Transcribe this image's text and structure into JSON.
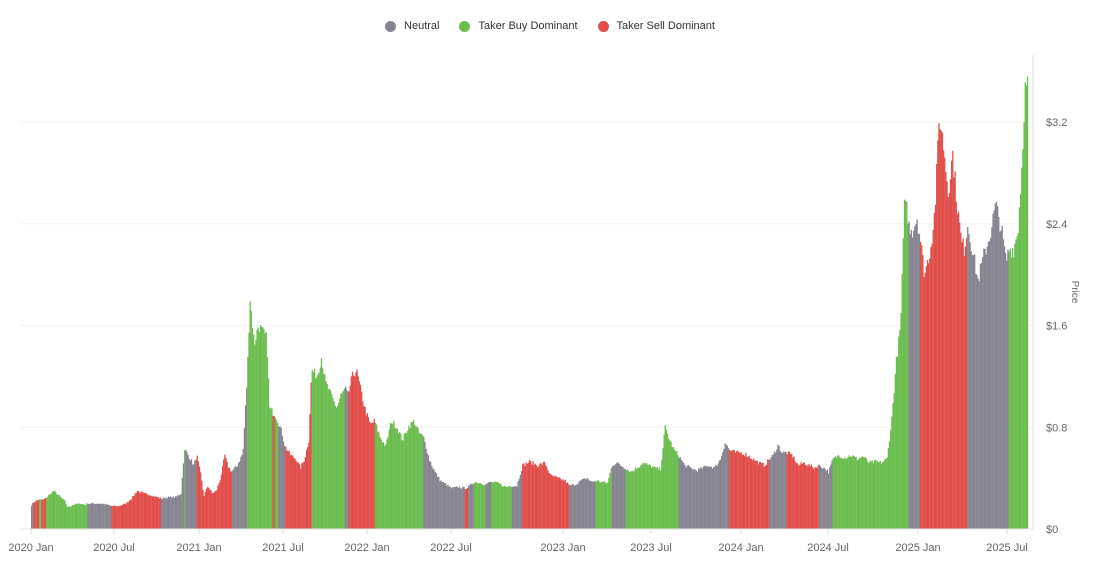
{
  "legend": [
    {
      "label": "Neutral",
      "color": "#868490",
      "key": "neutral"
    },
    {
      "label": "Taker Buy Dominant",
      "color": "#6cbd4f",
      "key": "buy"
    },
    {
      "label": "Taker Sell Dominant",
      "color": "#e24f4b",
      "key": "sell"
    }
  ],
  "chart_data": {
    "type": "bar",
    "title": "",
    "xlabel": "",
    "ylabel": "Price",
    "ylim": [
      0,
      3.6
    ],
    "y_ticks": [
      {
        "value": 0,
        "label": "$0"
      },
      {
        "value": 0.8,
        "label": "$0.8"
      },
      {
        "value": 1.6,
        "label": "$1.6"
      },
      {
        "value": 2.4,
        "label": "$2.4"
      },
      {
        "value": 3.2,
        "label": "$3.2"
      }
    ],
    "x_ticks": [
      {
        "label": "2020 Jan",
        "t": 0
      },
      {
        "label": "2020 Jul",
        "t": 6
      },
      {
        "label": "2021 Jan",
        "t": 12
      },
      {
        "label": "2021 Jul",
        "t": 18
      },
      {
        "label": "2022 Jan",
        "t": 24
      },
      {
        "label": "2022 Jul",
        "t": 30
      },
      {
        "label": "2023 Jan",
        "t": 36
      },
      {
        "label": "2023 Jul",
        "t": 42
      },
      {
        "label": "2024 Jan",
        "t": 48
      },
      {
        "label": "2024 Jul",
        "t": 54
      },
      {
        "label": "2025 Jan",
        "t": 60
      },
      {
        "label": "2025 Jul",
        "t": 66
      }
    ],
    "x_range_months": [
      0,
      66.7
    ],
    "grid": true,
    "legend_position": "top",
    "y_axis_position": "right",
    "series_note": "points: [month_offset_from_2020_Jan, price_usd, regime]",
    "points": [
      [
        0.0,
        0.19,
        "neutral"
      ],
      [
        0.15,
        0.21,
        "sell"
      ],
      [
        0.3,
        0.22,
        "sell"
      ],
      [
        0.5,
        0.23,
        "buy"
      ],
      [
        0.7,
        0.23,
        "sell"
      ],
      [
        0.85,
        0.23,
        "sell"
      ],
      [
        1.0,
        0.24,
        "buy"
      ],
      [
        1.3,
        0.27,
        "buy"
      ],
      [
        1.6,
        0.3,
        "buy"
      ],
      [
        1.8,
        0.28,
        "buy"
      ],
      [
        2.1,
        0.25,
        "buy"
      ],
      [
        2.4,
        0.22,
        "buy"
      ],
      [
        2.6,
        0.17,
        "buy"
      ],
      [
        3.0,
        0.19,
        "buy"
      ],
      [
        3.5,
        0.2,
        "buy"
      ],
      [
        3.9,
        0.19,
        "buy"
      ],
      [
        4.0,
        0.2,
        "neutral"
      ],
      [
        4.5,
        0.2,
        "neutral"
      ],
      [
        5.0,
        0.2,
        "neutral"
      ],
      [
        5.5,
        0.19,
        "neutral"
      ],
      [
        5.8,
        0.18,
        "sell"
      ],
      [
        6.3,
        0.18,
        "sell"
      ],
      [
        6.8,
        0.2,
        "sell"
      ],
      [
        7.2,
        0.24,
        "sell"
      ],
      [
        7.6,
        0.3,
        "sell"
      ],
      [
        8.0,
        0.28,
        "sell"
      ],
      [
        8.5,
        0.27,
        "sell"
      ],
      [
        9.0,
        0.25,
        "sell"
      ],
      [
        9.3,
        0.24,
        "neutral"
      ],
      [
        9.8,
        0.25,
        "neutral"
      ],
      [
        10.3,
        0.25,
        "neutral"
      ],
      [
        10.7,
        0.28,
        "neutral"
      ],
      [
        10.9,
        0.6,
        "buy"
      ],
      [
        11.0,
        0.62,
        "neutral"
      ],
      [
        11.3,
        0.56,
        "neutral"
      ],
      [
        11.6,
        0.5,
        "neutral"
      ],
      [
        11.8,
        0.58,
        "sell"
      ],
      [
        12.1,
        0.42,
        "sell"
      ],
      [
        12.3,
        0.26,
        "sell"
      ],
      [
        12.6,
        0.34,
        "sell"
      ],
      [
        12.9,
        0.28,
        "sell"
      ],
      [
        13.2,
        0.3,
        "sell"
      ],
      [
        13.5,
        0.4,
        "sell"
      ],
      [
        13.8,
        0.58,
        "sell"
      ],
      [
        14.0,
        0.5,
        "sell"
      ],
      [
        14.3,
        0.45,
        "neutral"
      ],
      [
        14.7,
        0.5,
        "neutral"
      ],
      [
        15.1,
        0.6,
        "neutral"
      ],
      [
        15.4,
        1.2,
        "buy"
      ],
      [
        15.6,
        1.82,
        "buy"
      ],
      [
        15.9,
        1.45,
        "buy"
      ],
      [
        16.2,
        1.6,
        "buy"
      ],
      [
        16.5,
        1.55,
        "buy"
      ],
      [
        16.8,
        1.5,
        "buy"
      ],
      [
        17.0,
        0.95,
        "buy"
      ],
      [
        17.2,
        0.92,
        "sell"
      ],
      [
        17.4,
        0.9,
        "buy"
      ],
      [
        17.6,
        0.85,
        "neutral"
      ],
      [
        17.9,
        0.75,
        "neutral"
      ],
      [
        18.1,
        0.65,
        "sell"
      ],
      [
        18.5,
        0.58,
        "sell"
      ],
      [
        18.9,
        0.55,
        "sell"
      ],
      [
        19.2,
        0.48,
        "sell"
      ],
      [
        19.5,
        0.55,
        "sell"
      ],
      [
        19.8,
        0.7,
        "sell"
      ],
      [
        20.0,
        1.25,
        "buy"
      ],
      [
        20.4,
        1.2,
        "buy"
      ],
      [
        20.7,
        1.35,
        "buy"
      ],
      [
        21.0,
        1.15,
        "buy"
      ],
      [
        21.4,
        1.05,
        "buy"
      ],
      [
        21.8,
        0.95,
        "buy"
      ],
      [
        22.1,
        1.05,
        "buy"
      ],
      [
        22.4,
        1.1,
        "neutral"
      ],
      [
        22.6,
        1.05,
        "sell"
      ],
      [
        22.9,
        1.2,
        "sell"
      ],
      [
        23.2,
        1.25,
        "sell"
      ],
      [
        23.5,
        1.1,
        "sell"
      ],
      [
        23.8,
        0.95,
        "sell"
      ],
      [
        24.2,
        0.82,
        "sell"
      ],
      [
        24.5,
        0.85,
        "buy"
      ],
      [
        24.9,
        0.72,
        "buy"
      ],
      [
        25.3,
        0.65,
        "buy"
      ],
      [
        25.7,
        0.85,
        "buy"
      ],
      [
        26.1,
        0.8,
        "buy"
      ],
      [
        26.5,
        0.7,
        "buy"
      ],
      [
        26.9,
        0.8,
        "buy"
      ],
      [
        27.3,
        0.85,
        "buy"
      ],
      [
        27.7,
        0.75,
        "buy"
      ],
      [
        28.0,
        0.72,
        "neutral"
      ],
      [
        28.4,
        0.55,
        "neutral"
      ],
      [
        28.8,
        0.45,
        "neutral"
      ],
      [
        29.2,
        0.38,
        "neutral"
      ],
      [
        29.6,
        0.35,
        "neutral"
      ],
      [
        30.0,
        0.32,
        "neutral"
      ],
      [
        30.4,
        0.33,
        "neutral"
      ],
      [
        30.7,
        0.32,
        "sell"
      ],
      [
        30.9,
        0.33,
        "neutral"
      ],
      [
        31.2,
        0.37,
        "buy"
      ],
      [
        31.6,
        0.36,
        "buy"
      ],
      [
        31.8,
        0.35,
        "neutral"
      ],
      [
        32.1,
        0.37,
        "buy"
      ],
      [
        32.5,
        0.36,
        "buy"
      ],
      [
        32.9,
        0.33,
        "buy"
      ],
      [
        33.2,
        0.34,
        "neutral"
      ],
      [
        33.5,
        0.34,
        "neutral"
      ],
      [
        33.8,
        0.5,
        "sell"
      ],
      [
        34.2,
        0.53,
        "sell"
      ],
      [
        34.6,
        0.5,
        "sell"
      ],
      [
        35.0,
        0.52,
        "sell"
      ],
      [
        35.3,
        0.42,
        "sell"
      ],
      [
        35.7,
        0.4,
        "sell"
      ],
      [
        36.1,
        0.38,
        "sell"
      ],
      [
        36.4,
        0.34,
        "neutral"
      ],
      [
        36.8,
        0.35,
        "neutral"
      ],
      [
        37.2,
        0.38,
        "neutral"
      ],
      [
        37.6,
        0.4,
        "neutral"
      ],
      [
        37.9,
        0.37,
        "neutral"
      ],
      [
        38.2,
        0.38,
        "buy"
      ],
      [
        38.6,
        0.37,
        "buy"
      ],
      [
        39.0,
        0.36,
        "buy"
      ],
      [
        39.3,
        0.5,
        "neutral"
      ],
      [
        39.6,
        0.52,
        "neutral"
      ],
      [
        39.9,
        0.5,
        "neutral"
      ],
      [
        40.2,
        0.48,
        "buy"
      ],
      [
        40.6,
        0.45,
        "buy"
      ],
      [
        41.0,
        0.48,
        "buy"
      ],
      [
        41.4,
        0.52,
        "buy"
      ],
      [
        41.8,
        0.5,
        "buy"
      ],
      [
        42.2,
        0.48,
        "buy"
      ],
      [
        42.6,
        0.47,
        "buy"
      ],
      [
        42.9,
        0.8,
        "buy"
      ],
      [
        43.2,
        0.7,
        "buy"
      ],
      [
        43.5,
        0.62,
        "buy"
      ],
      [
        43.8,
        0.58,
        "neutral"
      ],
      [
        44.2,
        0.5,
        "neutral"
      ],
      [
        44.6,
        0.48,
        "neutral"
      ],
      [
        45.0,
        0.46,
        "neutral"
      ],
      [
        45.4,
        0.48,
        "neutral"
      ],
      [
        45.8,
        0.5,
        "neutral"
      ],
      [
        46.2,
        0.48,
        "neutral"
      ],
      [
        46.6,
        0.55,
        "neutral"
      ],
      [
        46.9,
        0.68,
        "neutral"
      ],
      [
        47.2,
        0.62,
        "sell"
      ],
      [
        47.6,
        0.6,
        "sell"
      ],
      [
        48.0,
        0.6,
        "sell"
      ],
      [
        48.4,
        0.58,
        "sell"
      ],
      [
        48.8,
        0.55,
        "sell"
      ],
      [
        49.2,
        0.52,
        "sell"
      ],
      [
        49.6,
        0.5,
        "sell"
      ],
      [
        49.9,
        0.55,
        "neutral"
      ],
      [
        50.2,
        0.58,
        "neutral"
      ],
      [
        50.5,
        0.66,
        "neutral"
      ],
      [
        50.8,
        0.6,
        "neutral"
      ],
      [
        51.1,
        0.6,
        "sell"
      ],
      [
        51.5,
        0.58,
        "sell"
      ],
      [
        51.9,
        0.5,
        "sell"
      ],
      [
        52.3,
        0.52,
        "sell"
      ],
      [
        52.7,
        0.5,
        "sell"
      ],
      [
        53.0,
        0.48,
        "sell"
      ],
      [
        53.3,
        0.5,
        "neutral"
      ],
      [
        53.7,
        0.48,
        "neutral"
      ],
      [
        54.0,
        0.45,
        "neutral"
      ],
      [
        54.3,
        0.55,
        "buy"
      ],
      [
        54.7,
        0.58,
        "buy"
      ],
      [
        55.1,
        0.56,
        "buy"
      ],
      [
        55.5,
        0.58,
        "buy"
      ],
      [
        55.9,
        0.55,
        "buy"
      ],
      [
        56.3,
        0.57,
        "buy"
      ],
      [
        56.7,
        0.52,
        "buy"
      ],
      [
        57.1,
        0.53,
        "buy"
      ],
      [
        57.5,
        0.52,
        "buy"
      ],
      [
        57.9,
        0.55,
        "buy"
      ],
      [
        58.2,
        0.85,
        "buy"
      ],
      [
        58.5,
        1.3,
        "buy"
      ],
      [
        58.8,
        1.6,
        "buy"
      ],
      [
        59.0,
        2.3,
        "buy"
      ],
      [
        59.1,
        2.7,
        "buy"
      ],
      [
        59.3,
        2.4,
        "neutral"
      ],
      [
        59.6,
        2.35,
        "neutral"
      ],
      [
        59.9,
        2.45,
        "neutral"
      ],
      [
        60.1,
        2.3,
        "sell"
      ],
      [
        60.4,
        2.0,
        "sell"
      ],
      [
        60.8,
        2.2,
        "sell"
      ],
      [
        61.1,
        2.5,
        "sell"
      ],
      [
        61.4,
        3.25,
        "sell"
      ],
      [
        61.7,
        3.0,
        "sell"
      ],
      [
        62.0,
        2.65,
        "sell"
      ],
      [
        62.3,
        2.95,
        "sell"
      ],
      [
        62.6,
        2.55,
        "sell"
      ],
      [
        62.9,
        2.25,
        "sell"
      ],
      [
        63.1,
        2.2,
        "sell"
      ],
      [
        63.3,
        2.4,
        "neutral"
      ],
      [
        63.7,
        2.15,
        "neutral"
      ],
      [
        64.0,
        1.95,
        "neutral"
      ],
      [
        64.4,
        2.15,
        "neutral"
      ],
      [
        64.8,
        2.3,
        "neutral"
      ],
      [
        65.2,
        2.55,
        "neutral"
      ],
      [
        65.6,
        2.35,
        "neutral"
      ],
      [
        65.9,
        2.1,
        "neutral"
      ],
      [
        66.1,
        2.2,
        "buy"
      ],
      [
        66.4,
        2.2,
        "buy"
      ],
      [
        66.7,
        2.35,
        "buy"
      ],
      [
        66.95,
        2.85,
        "buy"
      ],
      [
        67.15,
        3.45,
        "buy"
      ],
      [
        67.35,
        3.5,
        "buy"
      ]
    ]
  }
}
